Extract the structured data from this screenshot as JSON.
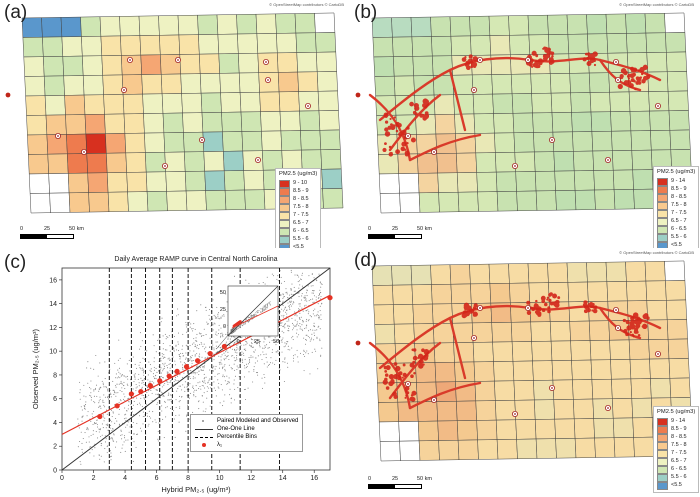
{
  "attribution": "© OpenStreetMap contributors © CartoDB",
  "panels": {
    "a": {
      "label": "(a)"
    },
    "b": {
      "label": "(b)"
    },
    "c": {
      "label": "(c)"
    },
    "d": {
      "label": "(d)"
    }
  },
  "legend_coarse": {
    "title": "PM2.5 (ug/m3)",
    "items": [
      {
        "label": "9 - 10",
        "color": "#d7301f"
      },
      {
        "label": "8.5 - 9",
        "color": "#ee7b4e"
      },
      {
        "label": "8 - 8.5",
        "color": "#f5a673"
      },
      {
        "label": "7.5 - 8",
        "color": "#f8c98e"
      },
      {
        "label": "7 - 7.5",
        "color": "#f9e3a8"
      },
      {
        "label": "6.5 - 7",
        "color": "#eef2c2"
      },
      {
        "label": "6 - 6.5",
        "color": "#cfe6b3"
      },
      {
        "label": "5.5 - 6",
        "color": "#9ccfc6"
      },
      {
        "label": "<5.5",
        "color": "#5a97cc"
      }
    ]
  },
  "legend_fine": {
    "title": "PM2.5 (ug/m3)",
    "items": [
      {
        "label": "9 - 14",
        "color": "#d7301f"
      },
      {
        "label": "8.5 - 9",
        "color": "#ee7b4e"
      },
      {
        "label": "8 - 8.5",
        "color": "#f5a673"
      },
      {
        "label": "7.5 - 8",
        "color": "#f8c98e"
      },
      {
        "label": "7 - 7.5",
        "color": "#f9e3a8"
      },
      {
        "label": "6.5 - 7",
        "color": "#eef2c2"
      },
      {
        "label": "6 - 6.5",
        "color": "#cfe6b3"
      },
      {
        "label": "5.5 - 6",
        "color": "#9ccfc6"
      },
      {
        "label": "<5.5",
        "color": "#5a97cc"
      }
    ]
  },
  "scale_bar": {
    "labels": [
      "0",
      "25",
      "50 km"
    ]
  },
  "chart_data": {
    "type": "scatter",
    "title": "Daily Average RAMP curve in Central North Carolina",
    "xlabel": "Hybrid PM₂.₅ (ug/m³)",
    "ylabel": "Observed PM₂.₅ (ug/m³)",
    "xlim": [
      0,
      17
    ],
    "ylim": [
      0,
      17
    ],
    "xticks": [
      "0",
      "2",
      "4",
      "6",
      "8",
      "10",
      "12",
      "14",
      "16"
    ],
    "yticks": [
      "0",
      "2",
      "4",
      "6",
      "8",
      "10",
      "12",
      "14",
      "16"
    ],
    "percentile_bins": [
      3.0,
      4.4,
      5.3,
      6.2,
      7.0,
      8.0,
      9.5,
      11.3,
      13.8
    ],
    "ramp_points": [
      {
        "x": 2.4,
        "y": 4.5
      },
      {
        "x": 3.5,
        "y": 5.4
      },
      {
        "x": 4.4,
        "y": 6.4
      },
      {
        "x": 5.0,
        "y": 6.6
      },
      {
        "x": 5.6,
        "y": 7.1
      },
      {
        "x": 6.2,
        "y": 7.5
      },
      {
        "x": 6.8,
        "y": 7.9
      },
      {
        "x": 7.3,
        "y": 8.3
      },
      {
        "x": 7.9,
        "y": 8.7
      },
      {
        "x": 8.6,
        "y": 9.2
      },
      {
        "x": 9.4,
        "y": 9.8
      },
      {
        "x": 10.3,
        "y": 10.4
      },
      {
        "x": 17.0,
        "y": 14.5
      }
    ],
    "ramp_line": {
      "x": [
        0,
        17
      ],
      "y": [
        3.0,
        14.7
      ]
    },
    "one_one_line": {
      "x": [
        0,
        17
      ],
      "y": [
        0,
        17
      ]
    },
    "inset_ticks": [
      "0",
      "25",
      "50"
    ],
    "legend": [
      "Paired Modeled and Observed",
      "One-One Line",
      "Percentile Bins",
      "λ₁"
    ]
  }
}
